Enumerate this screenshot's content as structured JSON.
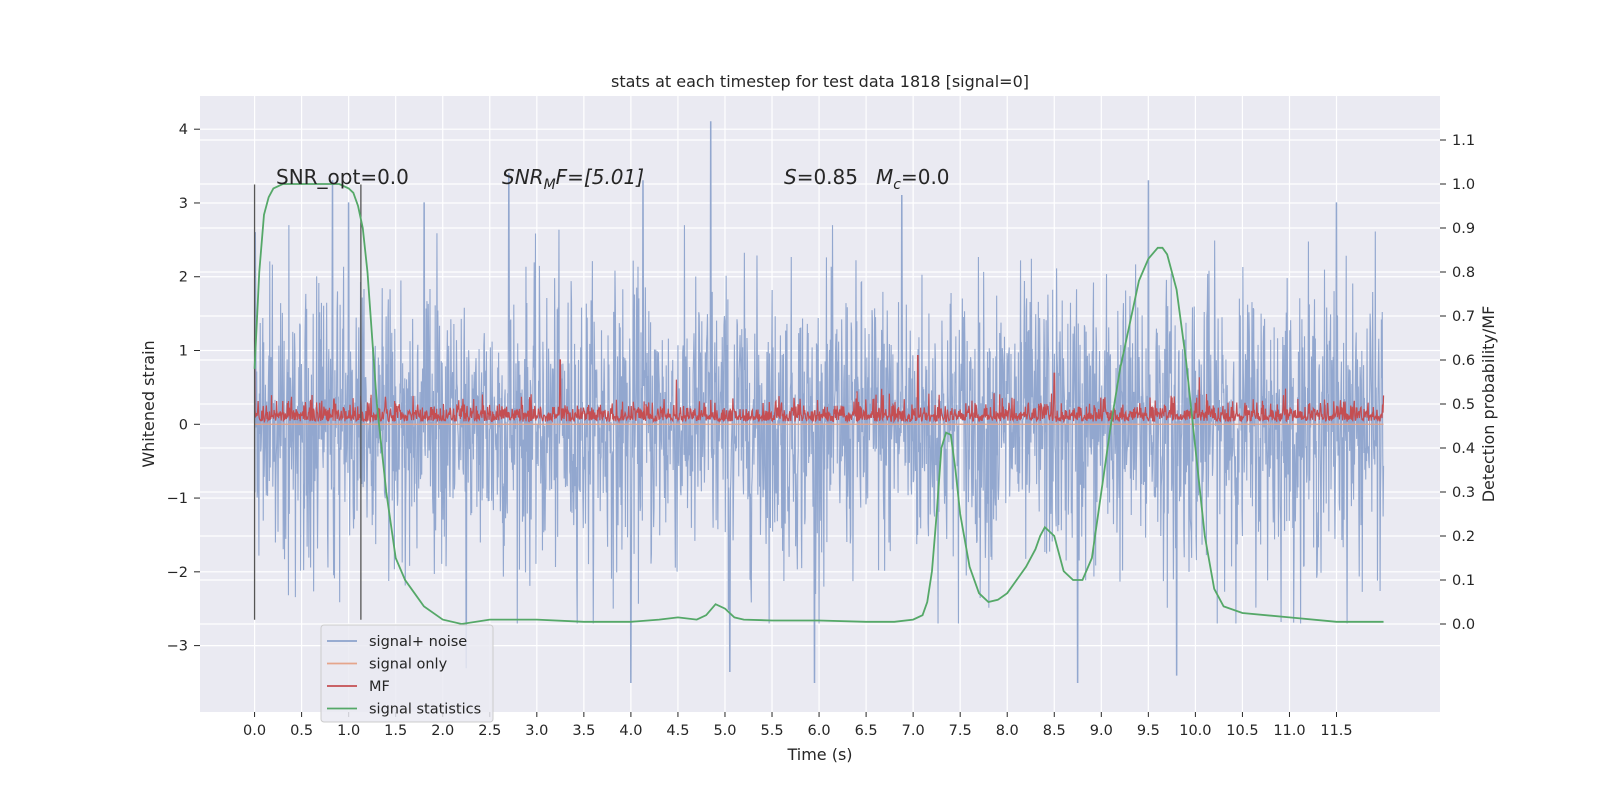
{
  "chart_data": {
    "type": "line",
    "title": "stats at each timestep for test data 1818 [signal=0]",
    "xlabel": "Time (s)",
    "ylabel_left": "Whitened strain",
    "ylabel_right": "Detection probability/MF",
    "xlim": [
      -0.58,
      12.6
    ],
    "ylim_left": [
      -3.9,
      4.45
    ],
    "ylim_right": [
      -0.2,
      1.2
    ],
    "x_ticks": [
      "0.0",
      "0.5",
      "1.0",
      "1.5",
      "2.0",
      "2.5",
      "3.0",
      "3.5",
      "4.0",
      "4.5",
      "5.0",
      "5.5",
      "6.0",
      "6.5",
      "7.0",
      "7.5",
      "8.0",
      "8.5",
      "9.0",
      "9.5",
      "10.0",
      "10.5",
      "11.0",
      "11.5"
    ],
    "y_ticks_left": [
      "−3",
      "−2",
      "−1",
      "0",
      "1",
      "2",
      "3",
      "4"
    ],
    "y_ticks_right": [
      "0.0",
      "0.1",
      "0.2",
      "0.3",
      "0.4",
      "0.5",
      "0.6",
      "0.7",
      "0.8",
      "0.9",
      "1.0",
      "1.1"
    ],
    "grid": true,
    "legend_position": "bottom-left",
    "annotations": {
      "snr_opt": "SNR_opt=0.0",
      "snr_mf_sym": "SNR",
      "snr_mf_sub": "M",
      "snr_mf_rest": "F=[5.01]",
      "s_sym": "S",
      "s_val": "=0.85",
      "mc_sym": "M",
      "mc_sub": "c",
      "mc_val": "=0.0"
    },
    "window_lines": {
      "x": [
        0.0,
        1.13
      ],
      "y_range_left": [
        -2.65,
        3.25
      ]
    },
    "series": [
      {
        "name": "signal+ noise",
        "color": "#8da3cc",
        "axis": "left",
        "description_values": {
          "x_range": [
            0.0,
            12.0
          ],
          "core_band": [
            -1.5,
            1.5
          ],
          "envelope": [
            -3.5,
            4.1
          ],
          "peaks": [
            [
              0.83,
              3.3
            ],
            [
              1.0,
              3.0
            ],
            [
              1.8,
              3.0
            ],
            [
              2.7,
              3.4
            ],
            [
              4.13,
              3.3
            ],
            [
              4.85,
              4.1
            ],
            [
              6.88,
              3.1
            ],
            [
              9.5,
              3.3
            ],
            [
              11.5,
              3.0
            ]
          ],
          "troughs": [
            [
              4.0,
              -3.5
            ],
            [
              5.05,
              -3.35
            ],
            [
              5.95,
              -3.5
            ],
            [
              8.75,
              -3.5
            ],
            [
              9.8,
              -3.4
            ],
            [
              2.25,
              -3.3
            ]
          ]
        }
      },
      {
        "name": "signal only",
        "color": "#e5a58b",
        "axis": "left",
        "values_note": "zero",
        "x": [
          0.0,
          12.0
        ],
        "y": [
          0.0,
          0.0
        ]
      },
      {
        "name": "MF",
        "color": "#c44e52",
        "axis": "right",
        "description_values": {
          "x_range": [
            0.0,
            12.0
          ],
          "base_band": [
            0.46,
            0.53
          ],
          "peaks": [
            [
              0.0,
              0.65
            ],
            [
              3.25,
              0.6
            ],
            [
              7.05,
              0.61
            ],
            [
              8.5,
              0.57
            ]
          ]
        }
      },
      {
        "name": "signal statistics",
        "color": "#55a868",
        "axis": "right",
        "x": [
          0.0,
          0.05,
          0.1,
          0.15,
          0.2,
          0.3,
          0.5,
          0.7,
          0.9,
          1.0,
          1.05,
          1.1,
          1.15,
          1.2,
          1.25,
          1.3,
          1.4,
          1.5,
          1.6,
          1.7,
          1.8,
          2.0,
          2.2,
          2.5,
          3.0,
          3.5,
          4.0,
          4.3,
          4.5,
          4.7,
          4.8,
          4.9,
          5.0,
          5.1,
          5.2,
          5.5,
          6.0,
          6.5,
          6.8,
          7.0,
          7.1,
          7.15,
          7.2,
          7.25,
          7.3,
          7.35,
          7.4,
          7.45,
          7.5,
          7.6,
          7.7,
          7.8,
          7.9,
          8.0,
          8.1,
          8.2,
          8.3,
          8.35,
          8.4,
          8.5,
          8.6,
          8.7,
          8.8,
          8.9,
          9.0,
          9.1,
          9.2,
          9.3,
          9.4,
          9.5,
          9.6,
          9.65,
          9.7,
          9.8,
          9.9,
          10.0,
          10.1,
          10.2,
          10.3,
          10.5,
          11.0,
          11.5,
          12.0
        ],
        "y": [
          0.58,
          0.8,
          0.93,
          0.97,
          0.99,
          1.0,
          1.0,
          1.0,
          1.0,
          0.99,
          0.98,
          0.95,
          0.9,
          0.8,
          0.65,
          0.5,
          0.3,
          0.15,
          0.1,
          0.07,
          0.04,
          0.01,
          0.0,
          0.01,
          0.01,
          0.005,
          0.005,
          0.01,
          0.015,
          0.01,
          0.02,
          0.045,
          0.035,
          0.015,
          0.01,
          0.008,
          0.008,
          0.005,
          0.005,
          0.01,
          0.02,
          0.05,
          0.12,
          0.25,
          0.4,
          0.435,
          0.43,
          0.35,
          0.25,
          0.13,
          0.07,
          0.05,
          0.055,
          0.07,
          0.1,
          0.13,
          0.17,
          0.2,
          0.22,
          0.2,
          0.12,
          0.1,
          0.1,
          0.15,
          0.3,
          0.45,
          0.58,
          0.68,
          0.78,
          0.83,
          0.855,
          0.855,
          0.84,
          0.76,
          0.6,
          0.4,
          0.2,
          0.08,
          0.04,
          0.025,
          0.015,
          0.005,
          0.005
        ]
      }
    ]
  }
}
